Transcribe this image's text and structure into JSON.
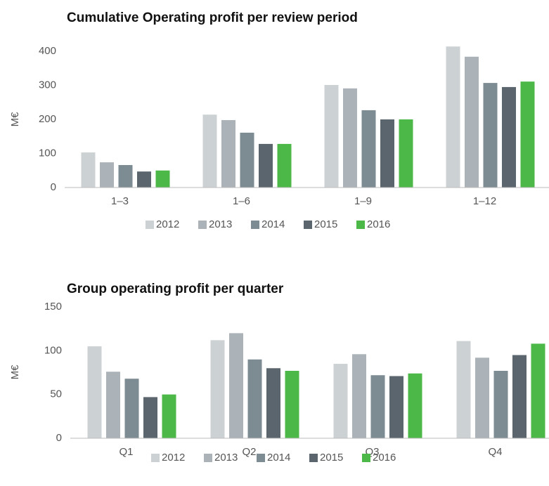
{
  "chart_data": [
    {
      "type": "bar",
      "title": "Cumulative Operating profit per review period",
      "y_label": "M€",
      "categories": [
        "1–3",
        "1–6",
        "1–9",
        "1–12"
      ],
      "series": [
        {
          "name": "2012",
          "color": "#ccd2d3",
          "values": [
            103,
            214,
            301,
            414
          ]
        },
        {
          "name": "2013",
          "color": "#abb3b8",
          "values": [
            74,
            198,
            291,
            384
          ]
        },
        {
          "name": "2014",
          "color": "#7d8b93",
          "values": [
            66,
            161,
            227,
            307
          ]
        },
        {
          "name": "2015",
          "color": "#5a656e",
          "values": [
            47,
            128,
            200,
            295
          ]
        },
        {
          "name": "2016",
          "color": "#4cb848",
          "values": [
            50,
            128,
            200,
            311
          ]
        }
      ],
      "ylim": [
        0,
        400
      ],
      "yticks": [
        0,
        100,
        200,
        300,
        400
      ],
      "grid": false
    },
    {
      "type": "bar",
      "title": "Group operating profit per quarter",
      "y_label": "M€",
      "categories": [
        "Q1",
        "Q2",
        "Q3",
        "Q4"
      ],
      "series": [
        {
          "name": "2012",
          "color": "#ccd2d3",
          "values": [
            105,
            112,
            85,
            111
          ]
        },
        {
          "name": "2013",
          "color": "#abb3b8",
          "values": [
            76,
            120,
            96,
            92
          ]
        },
        {
          "name": "2014",
          "color": "#7d8b93",
          "values": [
            68,
            90,
            72,
            77
          ]
        },
        {
          "name": "2015",
          "color": "#5a656e",
          "values": [
            47,
            80,
            71,
            95
          ]
        },
        {
          "name": "2016",
          "color": "#4cb848",
          "values": [
            50,
            77,
            74,
            108
          ]
        }
      ],
      "ylim": [
        0,
        150
      ],
      "yticks": [
        0,
        50,
        100,
        150
      ],
      "grid": false
    }
  ]
}
